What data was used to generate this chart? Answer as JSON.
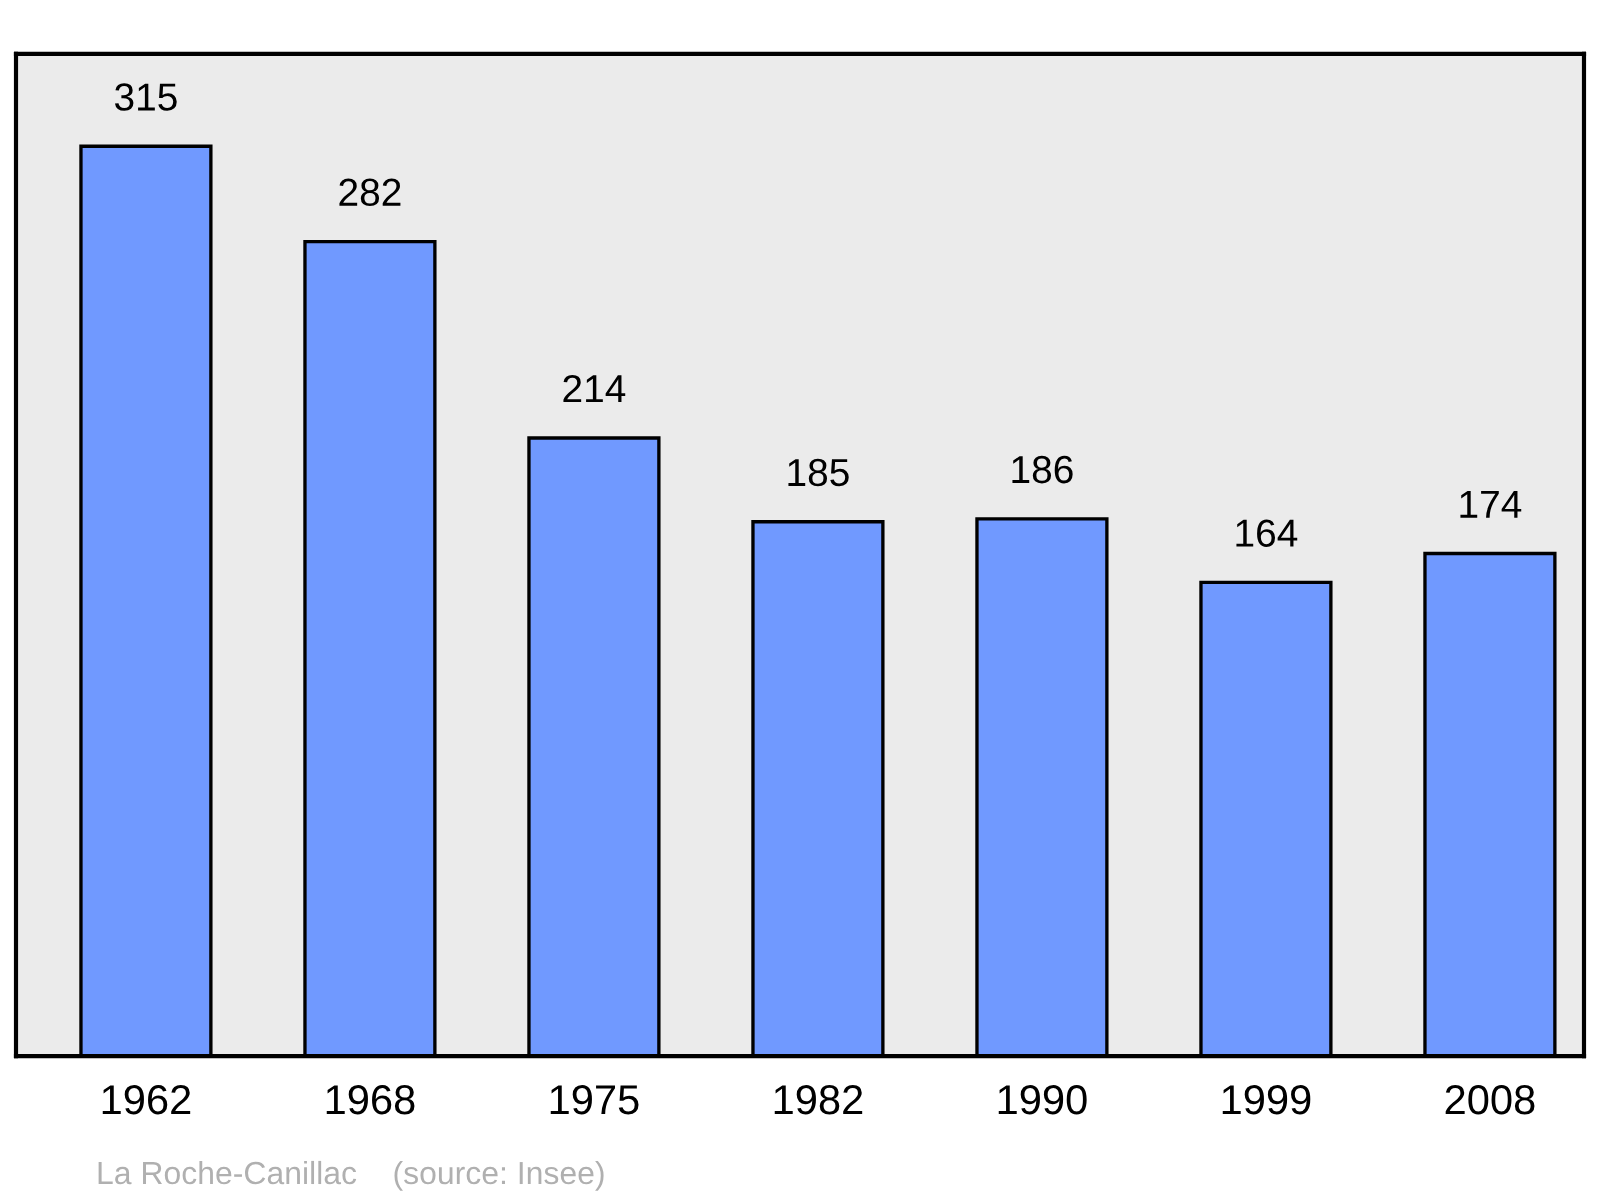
{
  "chart_data": {
    "type": "bar",
    "categories": [
      "1962",
      "1968",
      "1975",
      "1982",
      "1990",
      "1999",
      "2008"
    ],
    "values": [
      315,
      282,
      214,
      185,
      186,
      164,
      174
    ],
    "color": "#7099ff",
    "data_labels": true,
    "ylim": [
      0,
      347
    ],
    "tick_labels": "x",
    "grid": false,
    "legend": false,
    "annotations": [
      "La Roche-Canillac    (source: Insee)"
    ]
  }
}
